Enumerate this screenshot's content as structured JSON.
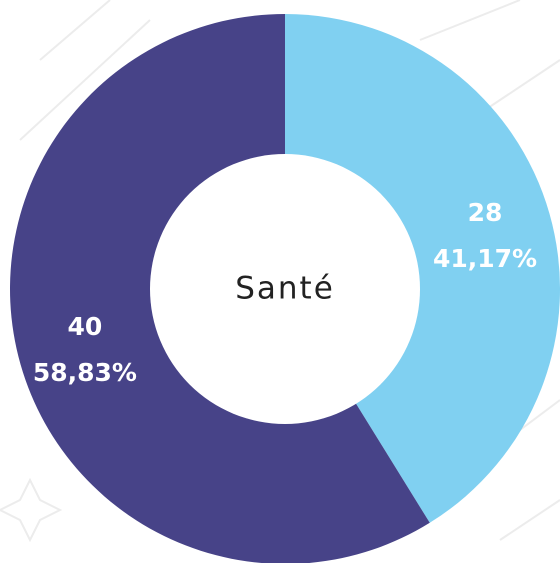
{
  "chart_data": {
    "type": "donut",
    "center_label": "Santé",
    "series": [
      {
        "name": null,
        "color": "#80d0f1",
        "values": [
          28
        ]
      },
      {
        "name": null,
        "color": "#474388",
        "values": [
          40
        ]
      }
    ],
    "percentages": [
      41.17,
      58.83
    ],
    "percentage_labels": [
      "41,17%",
      "58,83%"
    ]
  }
}
